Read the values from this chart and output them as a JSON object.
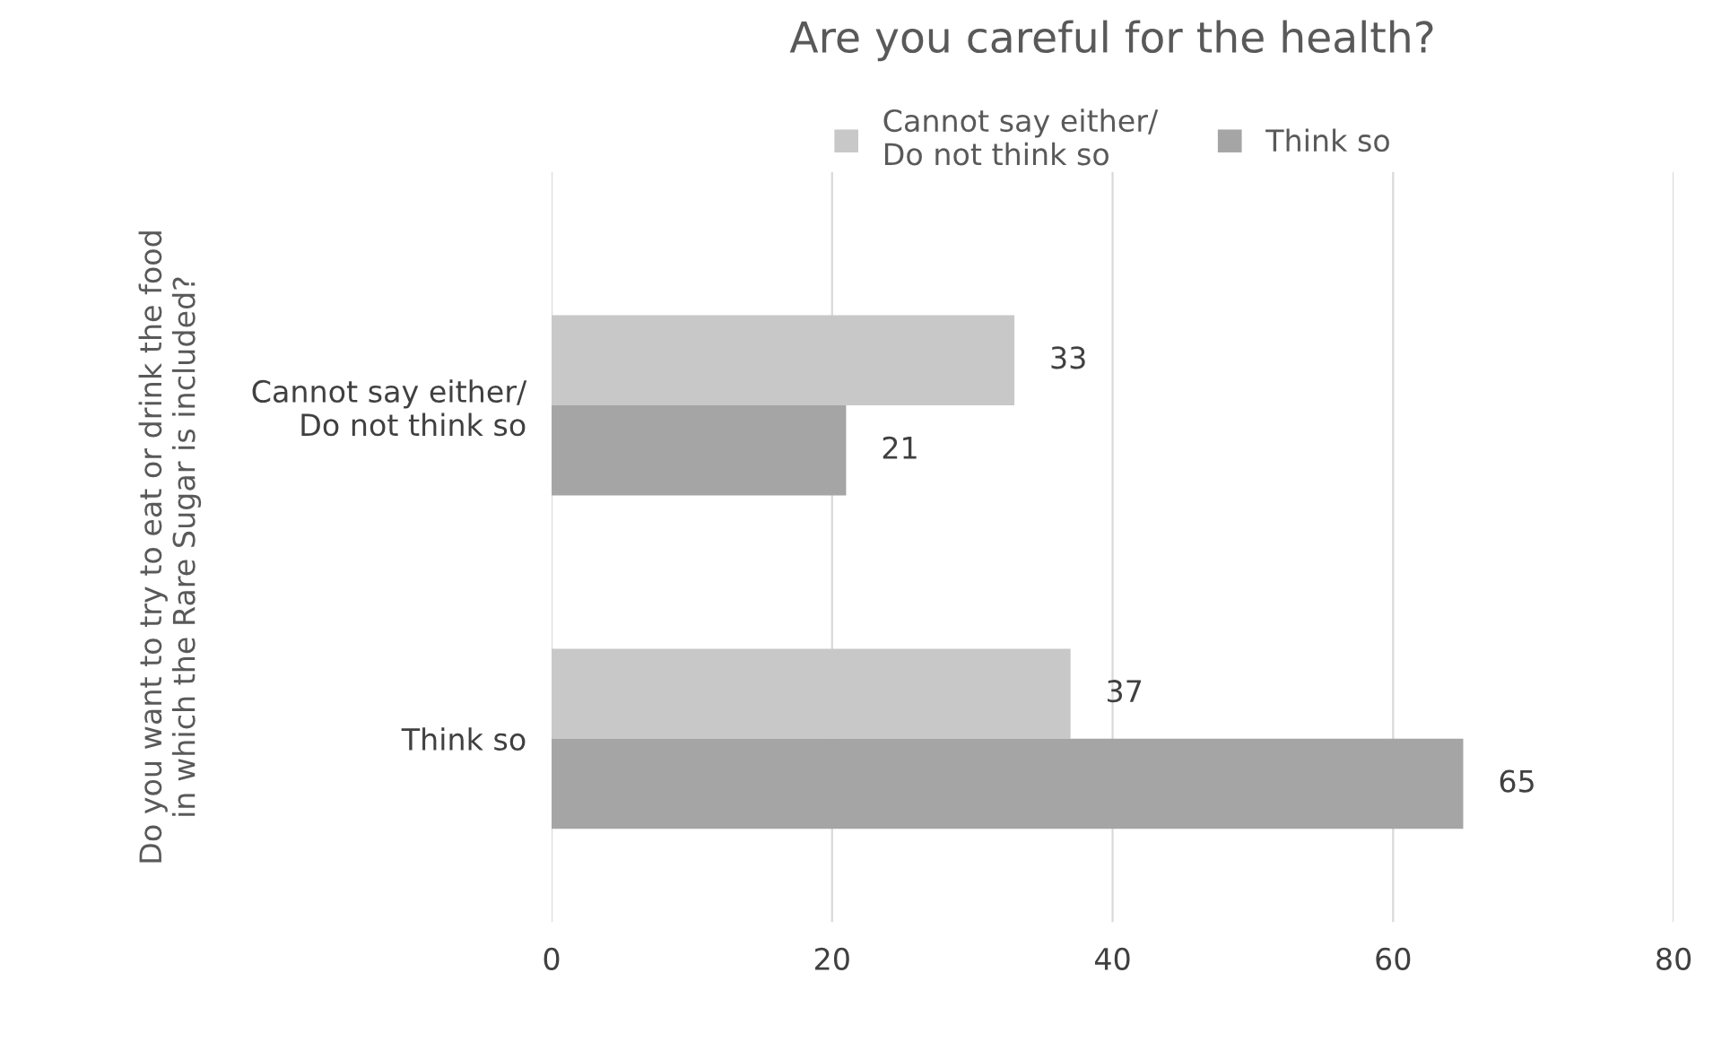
{
  "chart_data": {
    "type": "bar",
    "orientation": "horizontal",
    "title": "Are you careful for the health?",
    "ylabel": "Do you want to try to eat or drink the food\nin which the Rare Sugar is included?",
    "categories": [
      "Cannot say either/\nDo not think so",
      "Think so"
    ],
    "series": [
      {
        "name": "Cannot say either/\nDo not think so",
        "color": "#c8c8c8",
        "values": [
          33,
          37
        ]
      },
      {
        "name": "Think so",
        "color": "#a5a5a5",
        "values": [
          21,
          65
        ]
      }
    ],
    "xlim": [
      0,
      80
    ],
    "xticks": [
      0,
      20,
      40,
      60,
      80
    ],
    "grid": "x",
    "legend": "top",
    "data_labels": true
  }
}
